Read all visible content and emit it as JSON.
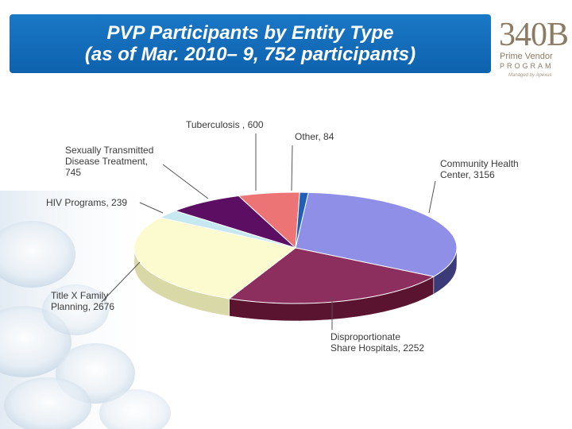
{
  "header": {
    "title_line1": "PVP Participants by Entity Type",
    "title_line2": "(as of Mar. 2010– 9, 752 participants)"
  },
  "logo": {
    "main": "340B",
    "line1": "Prime Vendor",
    "line2": "PROGRAM",
    "line3": "Managed by Apexus"
  },
  "chart_data": {
    "type": "pie",
    "title": "PVP Participants by Entity Type (as of Mar. 2010– 9, 752 participants)",
    "slices": [
      {
        "label": "Community Health Center",
        "value": 3156,
        "label_lines": [
          "Community Health",
          "Center, 3156"
        ],
        "color": "#8f8fe8",
        "side_color": "#3b3b7a"
      },
      {
        "label": "Disproportionate Share Hospitals",
        "value": 2252,
        "label_lines": [
          "Disproportionate",
          "Share Hospitals, 2252"
        ],
        "color": "#8c2f5e",
        "side_color": "#5a1430"
      },
      {
        "label": "Title X Family Planning",
        "value": 2676,
        "label_lines": [
          "Title X Family",
          "Planning, 2676"
        ],
        "color": "#fbfbcf",
        "side_color": "#d9d9a8"
      },
      {
        "label": "HIV Programs",
        "value": 239,
        "label_lines": [
          "HIV Programs, 239"
        ],
        "color": "#c6e8f0",
        "side_color": "#9cc4cc"
      },
      {
        "label": "Sexually Transmitted Disease Treatment",
        "value": 745,
        "label_lines": [
          "Sexually Transmitted",
          "Disease Treatment,",
          "745"
        ],
        "color": "#5c0f62",
        "side_color": "#3a0840"
      },
      {
        "label": "Tuberculosis",
        "value": 600,
        "label_lines": [
          "Tuberculosis , 600"
        ],
        "color": "#ec7474",
        "side_color": "#b04848"
      },
      {
        "label": "Other",
        "value": 84,
        "label_lines": [
          "Other, 84"
        ],
        "color": "#1f5fb5",
        "side_color": "#123c78"
      }
    ],
    "legend": "none"
  }
}
